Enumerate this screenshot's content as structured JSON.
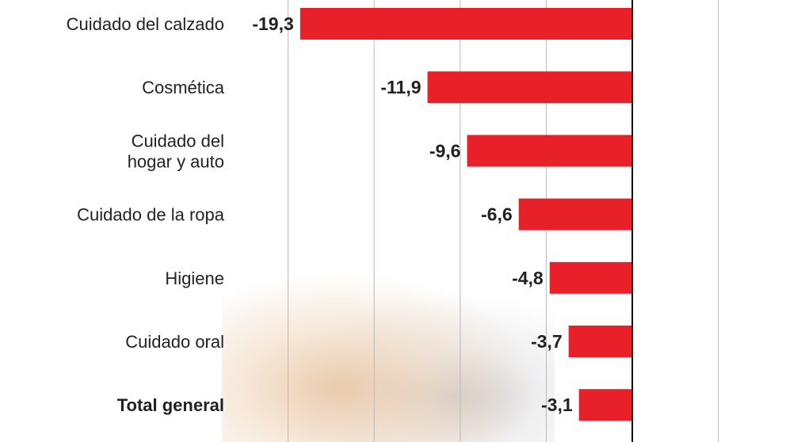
{
  "chart_data": {
    "type": "bar",
    "orientation": "horizontal",
    "categories": [
      [
        "Cuidado del calzado"
      ],
      [
        "Cosmética"
      ],
      [
        "Cuidado del",
        "hogar y auto"
      ],
      [
        "Cuidado de la ropa"
      ],
      [
        "Higiene"
      ],
      [
        "Cuidado oral"
      ],
      [
        "Total general"
      ]
    ],
    "values": [
      -19.3,
      -11.9,
      -9.6,
      -6.6,
      -4.8,
      -3.7,
      -3.1
    ],
    "value_labels": [
      "-19,3",
      "-11,9",
      "-9,6",
      "-6,6",
      "-4,8",
      "-3,7",
      "-3,1"
    ],
    "bold_categories": [
      "Total general"
    ],
    "xlim": [
      -20,
      8.9
    ],
    "grid_step": 5,
    "grid": true,
    "bar_color": "#e8202a",
    "title": "",
    "xlabel": "",
    "ylabel": ""
  }
}
